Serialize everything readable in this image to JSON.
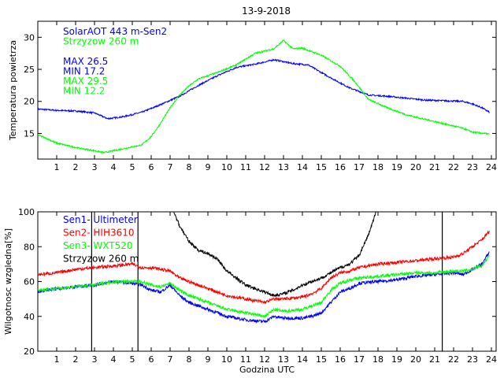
{
  "chart_data": [
    {
      "type": "line",
      "title": "13-9-2018",
      "xlabel": "",
      "ylabel": "Temperatura powietrza",
      "xlim": [
        0,
        24.25
      ],
      "ylim": [
        11,
        32.5
      ],
      "xticks": [
        1,
        2,
        3,
        4,
        5,
        6,
        7,
        8,
        9,
        10,
        11,
        12,
        13,
        14,
        15,
        16,
        17,
        18,
        19,
        20,
        21,
        22,
        23,
        24
      ],
      "yticks": [
        15,
        20,
        25,
        30
      ],
      "series": [
        {
          "name": "SolarAOT 443 m-Sen2",
          "color": "#0000ff",
          "x": [
            0,
            1,
            2,
            3,
            3.7,
            4.5,
            5.5,
            6.5,
            7.5,
            8.5,
            9.5,
            10.5,
            11.5,
            12.5,
            13.5,
            14.3,
            15,
            15.8,
            16.5,
            17.5,
            18.5,
            19.5,
            20.5,
            21.5,
            22.5,
            23,
            23.5,
            23.9
          ],
          "y": [
            18.8,
            18.6,
            18.5,
            18.2,
            17.3,
            17.6,
            18.3,
            19.5,
            20.8,
            22.5,
            24.0,
            25.3,
            25.8,
            26.5,
            25.9,
            25.7,
            24.5,
            23.2,
            22.1,
            21.0,
            20.8,
            20.5,
            20.2,
            20.1,
            20.0,
            19.6,
            19.0,
            18.3
          ]
        },
        {
          "name": "Strzyzow 260 m",
          "color": "#00ff00",
          "x": [
            0,
            1,
            2,
            3,
            3.5,
            4.5,
            5.5,
            6,
            6.5,
            7,
            7.5,
            8,
            8.5,
            9.5,
            10.5,
            11.5,
            12.5,
            13,
            13.5,
            14,
            15,
            16,
            16.8,
            17.5,
            18.5,
            19.5,
            20.5,
            21.5,
            22.5,
            23,
            23.9
          ],
          "y": [
            14.8,
            13.5,
            12.8,
            12.3,
            12.0,
            12.6,
            13.2,
            14.5,
            16.6,
            19.0,
            21.0,
            22.4,
            23.5,
            24.5,
            25.7,
            27.5,
            28.2,
            29.5,
            28.2,
            28.3,
            27.2,
            25.5,
            23.0,
            20.3,
            19.0,
            17.9,
            17.2,
            16.5,
            15.8,
            15.2,
            14.9
          ]
        }
      ],
      "annotations": {
        "max_sen2": "MAX 26.5",
        "min_sen2": "MIN 17.2",
        "max_strz": "MAX 29.5",
        "min_strz": "MIN 12.2"
      }
    },
    {
      "type": "line",
      "title": "",
      "xlabel": "Godzina UTC",
      "ylabel": "Wilgotnosc wzgledna[%]",
      "xlim": [
        0,
        24.25
      ],
      "ylim": [
        20,
        100
      ],
      "xticks": [
        1,
        2,
        3,
        4,
        5,
        6,
        7,
        8,
        9,
        10,
        11,
        12,
        13,
        14,
        15,
        16,
        17,
        18,
        19,
        20,
        21,
        22,
        23,
        24
      ],
      "yticks": [
        20,
        40,
        60,
        80,
        100
      ],
      "series": [
        {
          "name": "Sen1- Ultimeter",
          "color": "#0000ff",
          "x": [
            0,
            1,
            2,
            3,
            4,
            5,
            5.5,
            6,
            6.5,
            7,
            7.5,
            8,
            9,
            10,
            11,
            12,
            12.5,
            13,
            14,
            14.5,
            15,
            15.5,
            16,
            16.5,
            17,
            18,
            19,
            20,
            21,
            22,
            22.5,
            23,
            23.5,
            23.9
          ],
          "y": [
            54,
            56,
            57,
            58,
            60,
            59,
            58,
            55,
            54,
            58,
            52,
            48,
            44,
            40,
            38,
            37,
            40,
            39,
            39,
            40,
            42,
            48,
            54,
            56,
            59,
            60,
            61,
            63,
            64,
            65,
            64,
            67,
            70,
            77
          ]
        },
        {
          "name": "Sen2- HIH3610",
          "color": "#ff0000",
          "x": [
            0,
            1,
            2,
            3,
            4,
            5,
            5.5,
            6,
            6.5,
            7,
            7.5,
            8,
            9,
            10,
            11,
            12,
            12.5,
            13,
            14,
            14.5,
            15,
            15.5,
            16,
            16.5,
            17,
            18,
            19,
            20,
            21,
            22,
            22.5,
            23,
            23.5,
            23.9
          ],
          "y": [
            64,
            65,
            67,
            68,
            69,
            70,
            68,
            68,
            67,
            66,
            62,
            60,
            56,
            52,
            50,
            48,
            50,
            50,
            51,
            53,
            56,
            62,
            65,
            66,
            68,
            70,
            71,
            72,
            73,
            74,
            76,
            80,
            84,
            89
          ]
        },
        {
          "name": "Sen3- WXT520",
          "color": "#00ff00",
          "x": [
            0,
            1,
            2,
            3,
            4,
            5,
            5.5,
            6,
            6.5,
            7,
            7.5,
            8,
            9,
            10,
            11,
            12,
            12.5,
            13,
            14,
            14.5,
            15,
            15.5,
            16,
            16.5,
            17,
            18,
            19,
            20,
            21,
            22,
            22.5,
            23,
            23.5,
            23.9
          ],
          "y": [
            55,
            56,
            57,
            58,
            60,
            60,
            60,
            58,
            57,
            59,
            55,
            52,
            48,
            44,
            42,
            40,
            44,
            43,
            44,
            46,
            48,
            55,
            59,
            61,
            62,
            63,
            64,
            65,
            65,
            66,
            66,
            67,
            69,
            75
          ]
        },
        {
          "name": "Strzyzow 260 m",
          "color": "#000000",
          "x": [
            7.2,
            7.5,
            8,
            8.5,
            9,
            9.5,
            10,
            10.5,
            11,
            11.5,
            12,
            12.5,
            13,
            13.5,
            14,
            14.5,
            15,
            15.5,
            16,
            16.5,
            17,
            17.5,
            17.9
          ],
          "y": [
            100,
            92,
            83,
            78,
            76,
            73,
            66,
            62,
            58,
            56,
            54,
            52,
            53,
            55,
            58,
            60,
            62,
            65,
            68,
            70,
            75,
            87,
            100
          ]
        }
      ],
      "vertical_lines_x": [
        2.85,
        5.3,
        21.4
      ]
    }
  ]
}
